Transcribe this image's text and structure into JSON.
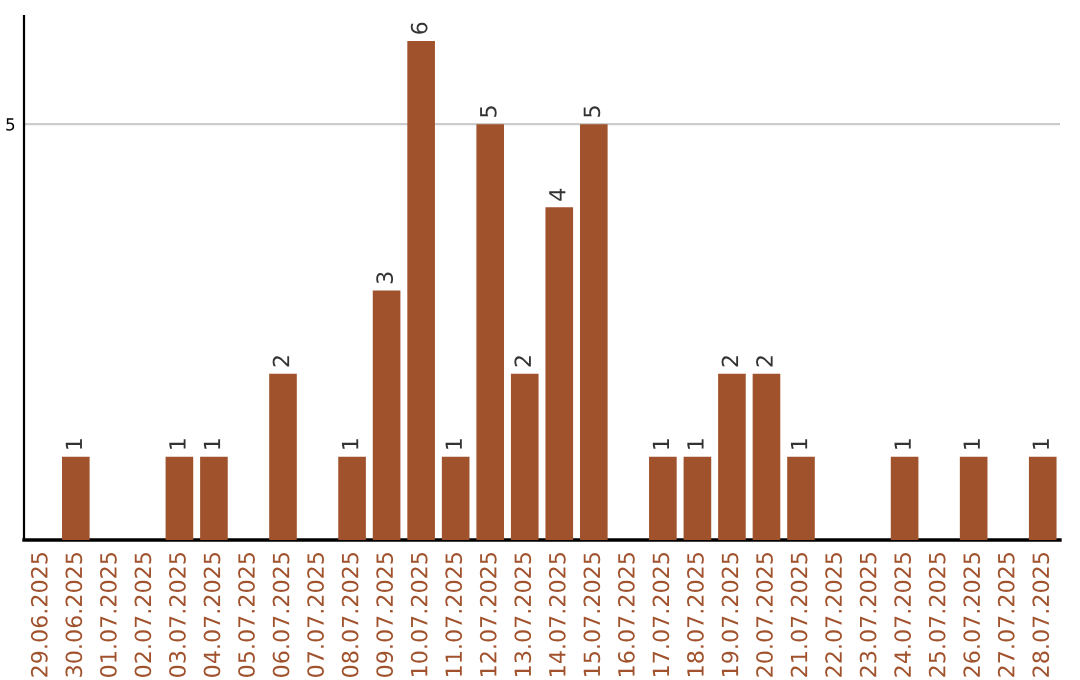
{
  "chart_data": {
    "type": "bar",
    "categories": [
      "29.06.2025",
      "30.06.2025",
      "01.07.2025",
      "02.07.2025",
      "03.07.2025",
      "04.07.2025",
      "05.07.2025",
      "06.07.2025",
      "07.07.2025",
      "08.07.2025",
      "09.07.2025",
      "10.07.2025",
      "11.07.2025",
      "12.07.2025",
      "13.07.2025",
      "14.07.2025",
      "15.07.2025",
      "16.07.2025",
      "17.07.2025",
      "18.07.2025",
      "19.07.2025",
      "20.07.2025",
      "21.07.2025",
      "22.07.2025",
      "23.07.2025",
      "24.07.2025",
      "25.07.2025",
      "26.07.2025",
      "27.07.2025",
      "28.07.2025"
    ],
    "values": [
      0,
      1,
      0,
      0,
      1,
      1,
      0,
      2,
      0,
      1,
      3,
      6,
      1,
      5,
      2,
      4,
      5,
      0,
      1,
      1,
      2,
      2,
      1,
      0,
      0,
      1,
      0,
      1,
      0,
      1
    ],
    "value_labels": [
      null,
      "1",
      null,
      null,
      "1",
      "1",
      null,
      "2",
      null,
      "1",
      "3",
      "6",
      "1",
      "5",
      "2",
      "4",
      "5",
      null,
      "1",
      "1",
      "2",
      "2",
      "1",
      null,
      null,
      "1",
      null,
      "1",
      null,
      "1"
    ],
    "color": "#a0522d",
    "ylim": [
      0,
      6.3
    ],
    "yticks": [
      5
    ],
    "grid": "y"
  }
}
